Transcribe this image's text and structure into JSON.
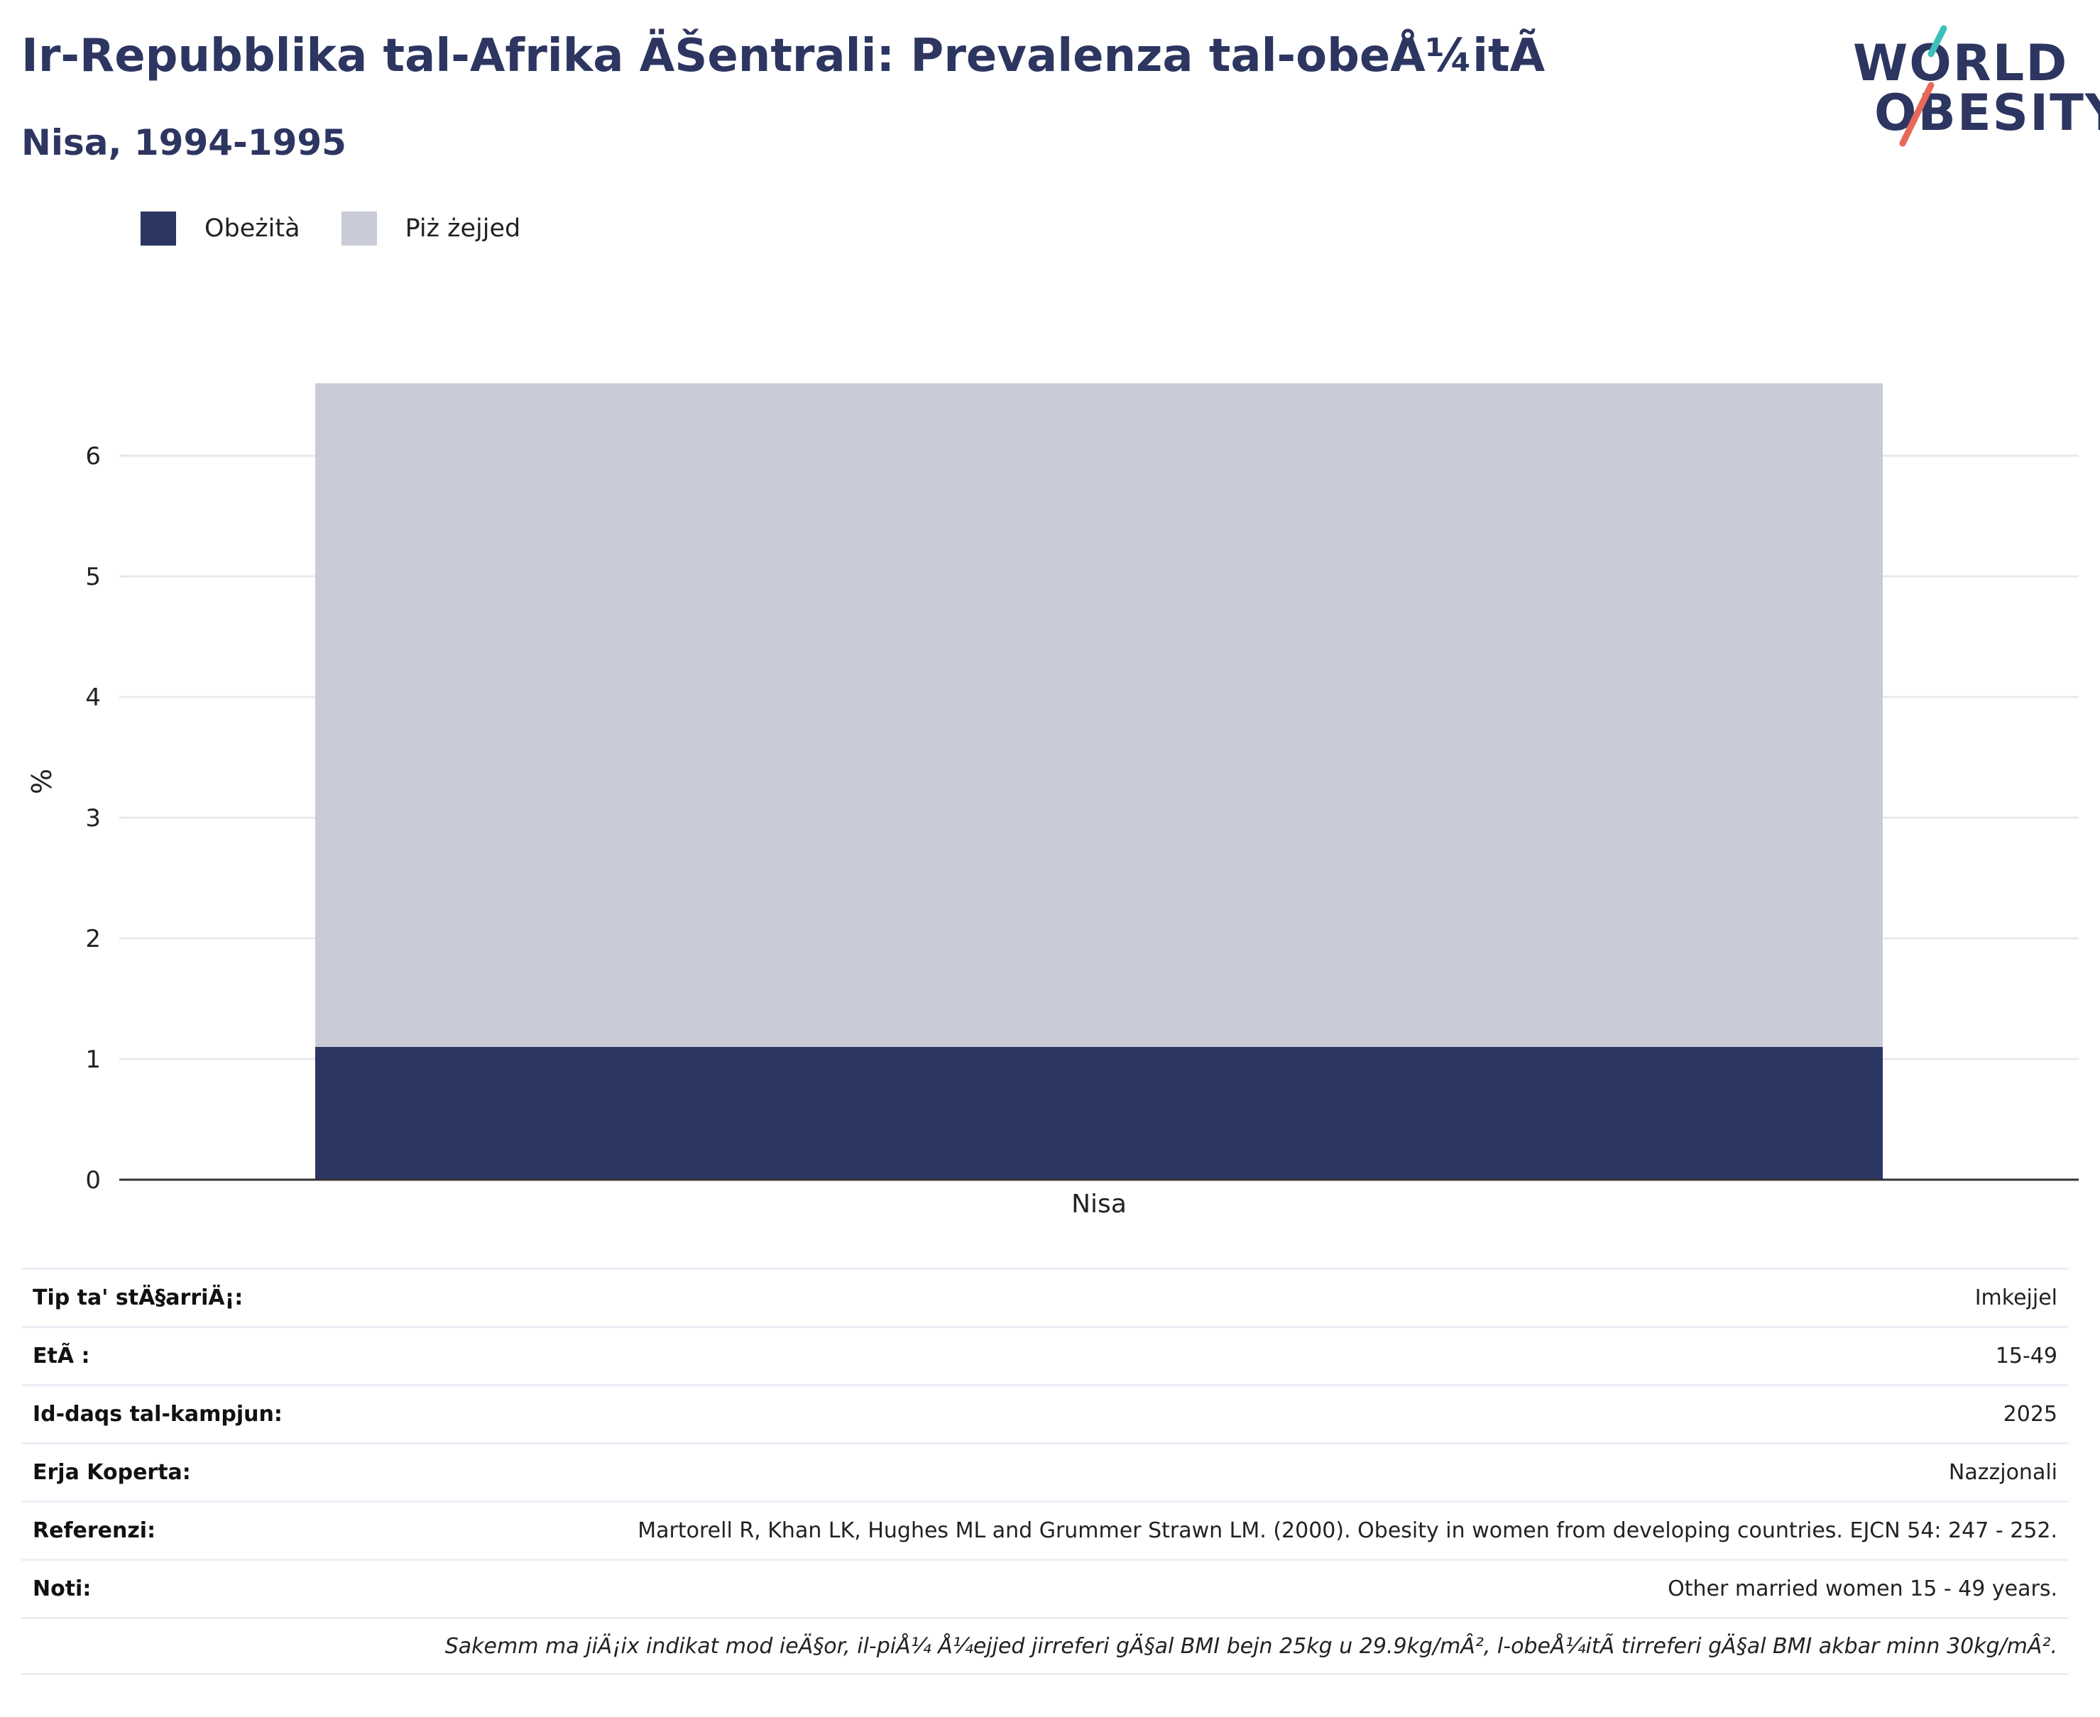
{
  "header": {
    "title": "Ir-Repubblika tal-Afrika ÄŠentrali: Prevalenza tal-obeÅ¼itÃ",
    "subtitle": "Nisa, 1994-1995",
    "logo_line1": "WORLD",
    "logo_line2": "OBESITY"
  },
  "colors": {
    "obese": "#2b3663",
    "overweight": "#c9ccd7",
    "logo_teal": "#3fbfba",
    "logo_coral": "#e8685a",
    "title": "#2d3561"
  },
  "legend": [
    {
      "label": "Obeżità",
      "color": "#2b3663"
    },
    {
      "label": "Piż żejjed",
      "color": "#c9ccd7"
    }
  ],
  "chart_data": {
    "type": "bar",
    "stacked": true,
    "categories": [
      "Nisa"
    ],
    "series": [
      {
        "name": "Obeżità",
        "values": [
          1.1
        ]
      },
      {
        "name": "Piż żejjed",
        "values": [
          5.5
        ]
      }
    ],
    "ylabel": "%",
    "xlabel": "",
    "ylim": [
      0,
      6.6
    ],
    "yticks": [
      0,
      1,
      2,
      3,
      4,
      5,
      6
    ],
    "grid": true,
    "legend_position": "top-left"
  },
  "info_table": [
    {
      "label": "Tip ta' stÄ§arriÄ¡:",
      "value": "Imkejjel"
    },
    {
      "label": "EtÃ :",
      "value": "15-49"
    },
    {
      "label": "Id-daqs tal-kampjun:",
      "value": "2025"
    },
    {
      "label": "Erja Koperta:",
      "value": "Nazzjonali"
    },
    {
      "label": "Referenzi:",
      "value": "Martorell R, Khan LK, Hughes ML and Grummer Strawn LM. (2000). Obesity in women from developing countries. EJCN 54: 247 - 252."
    },
    {
      "label": "Noti:",
      "value": "Other married women 15 - 49 years."
    }
  ],
  "footnote": "Sakemm ma jiÄ¡ix indikat mod ieÄ§or, il-piÅ¼ Å¼ejjed jirreferi gÄ§al BMI bejn 25kg u 29.9kg/mÂ², l-obeÅ¼itÃ  tirreferi gÄ§al BMI akbar minn 30kg/mÂ²."
}
